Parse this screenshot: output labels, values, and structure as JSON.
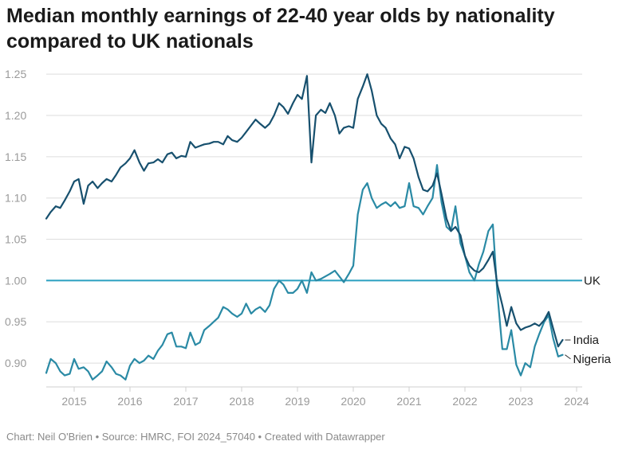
{
  "header": {
    "title_line1": "Median monthly earnings of 22-40 year olds by nationality",
    "title_line2": "compared to UK nationals"
  },
  "footer": {
    "source": "Chart: Neil O'Brien • Source: HMRC, FOI 2024_57040 • Created with Datawrapper"
  },
  "colors": {
    "india": "#17506e",
    "nigeria": "#2a8aa5",
    "uk": "#2a9fc0",
    "grid": "#dedede"
  },
  "chart_data": {
    "type": "line",
    "title": "Median monthly earnings of 22-40 year olds by nationality compared to UK nationals",
    "xlabel": "",
    "ylabel": "",
    "xlim": [
      2014.5,
      2024.1
    ],
    "ylim": [
      0.875,
      1.255
    ],
    "x_ticks": [
      "2015",
      "2016",
      "2017",
      "2018",
      "2019",
      "2020",
      "2021",
      "2022",
      "2023",
      "2024"
    ],
    "y_ticks": [
      "0.90",
      "0.95",
      "1.00",
      "1.05",
      "1.10",
      "1.15",
      "1.20",
      "1.25"
    ],
    "grid": true,
    "reference_line": {
      "name": "UK",
      "value": 1.0
    },
    "series": [
      {
        "name": "India",
        "points": [
          [
            2014.5,
            1.075
          ],
          [
            2014.58,
            1.083
          ],
          [
            2014.67,
            1.09
          ],
          [
            2014.75,
            1.088
          ],
          [
            2014.83,
            1.097
          ],
          [
            2014.92,
            1.108
          ],
          [
            2015.0,
            1.12
          ],
          [
            2015.08,
            1.123
          ],
          [
            2015.17,
            1.093
          ],
          [
            2015.25,
            1.115
          ],
          [
            2015.33,
            1.12
          ],
          [
            2015.42,
            1.112
          ],
          [
            2015.5,
            1.118
          ],
          [
            2015.58,
            1.123
          ],
          [
            2015.67,
            1.12
          ],
          [
            2015.75,
            1.128
          ],
          [
            2015.83,
            1.137
          ],
          [
            2015.92,
            1.142
          ],
          [
            2016.0,
            1.148
          ],
          [
            2016.08,
            1.158
          ],
          [
            2016.17,
            1.143
          ],
          [
            2016.25,
            1.133
          ],
          [
            2016.33,
            1.142
          ],
          [
            2016.42,
            1.143
          ],
          [
            2016.5,
            1.147
          ],
          [
            2016.58,
            1.143
          ],
          [
            2016.67,
            1.153
          ],
          [
            2016.75,
            1.155
          ],
          [
            2016.83,
            1.148
          ],
          [
            2016.92,
            1.151
          ],
          [
            2017.0,
            1.15
          ],
          [
            2017.08,
            1.168
          ],
          [
            2017.17,
            1.161
          ],
          [
            2017.25,
            1.163
          ],
          [
            2017.33,
            1.165
          ],
          [
            2017.42,
            1.166
          ],
          [
            2017.5,
            1.168
          ],
          [
            2017.58,
            1.168
          ],
          [
            2017.67,
            1.165
          ],
          [
            2017.75,
            1.175
          ],
          [
            2017.83,
            1.17
          ],
          [
            2017.92,
            1.168
          ],
          [
            2018.0,
            1.173
          ],
          [
            2018.08,
            1.18
          ],
          [
            2018.17,
            1.188
          ],
          [
            2018.25,
            1.195
          ],
          [
            2018.33,
            1.19
          ],
          [
            2018.42,
            1.185
          ],
          [
            2018.5,
            1.19
          ],
          [
            2018.58,
            1.2
          ],
          [
            2018.67,
            1.215
          ],
          [
            2018.75,
            1.21
          ],
          [
            2018.83,
            1.202
          ],
          [
            2018.92,
            1.215
          ],
          [
            2019.0,
            1.225
          ],
          [
            2019.08,
            1.22
          ],
          [
            2019.17,
            1.248
          ],
          [
            2019.25,
            1.143
          ],
          [
            2019.33,
            1.2
          ],
          [
            2019.42,
            1.207
          ],
          [
            2019.5,
            1.203
          ],
          [
            2019.58,
            1.215
          ],
          [
            2019.67,
            1.2
          ],
          [
            2019.75,
            1.178
          ],
          [
            2019.83,
            1.185
          ],
          [
            2019.92,
            1.187
          ],
          [
            2020.0,
            1.185
          ],
          [
            2020.08,
            1.22
          ],
          [
            2020.17,
            1.235
          ],
          [
            2020.25,
            1.25
          ],
          [
            2020.33,
            1.23
          ],
          [
            2020.42,
            1.2
          ],
          [
            2020.5,
            1.19
          ],
          [
            2020.58,
            1.185
          ],
          [
            2020.67,
            1.172
          ],
          [
            2020.75,
            1.165
          ],
          [
            2020.83,
            1.148
          ],
          [
            2020.92,
            1.162
          ],
          [
            2021.0,
            1.16
          ],
          [
            2021.08,
            1.148
          ],
          [
            2021.17,
            1.125
          ],
          [
            2021.25,
            1.11
          ],
          [
            2021.33,
            1.108
          ],
          [
            2021.42,
            1.115
          ],
          [
            2021.5,
            1.13
          ],
          [
            2021.58,
            1.105
          ],
          [
            2021.67,
            1.075
          ],
          [
            2021.75,
            1.06
          ],
          [
            2021.83,
            1.065
          ],
          [
            2021.92,
            1.055
          ],
          [
            2022.0,
            1.03
          ],
          [
            2022.08,
            1.018
          ],
          [
            2022.17,
            1.012
          ],
          [
            2022.25,
            1.01
          ],
          [
            2022.33,
            1.015
          ],
          [
            2022.42,
            1.025
          ],
          [
            2022.5,
            1.035
          ],
          [
            2022.58,
            0.995
          ],
          [
            2022.67,
            0.97
          ],
          [
            2022.75,
            0.945
          ],
          [
            2022.83,
            0.968
          ],
          [
            2022.92,
            0.948
          ],
          [
            2023.0,
            0.94
          ],
          [
            2023.08,
            0.943
          ],
          [
            2023.17,
            0.945
          ],
          [
            2023.25,
            0.948
          ],
          [
            2023.33,
            0.945
          ],
          [
            2023.42,
            0.952
          ],
          [
            2023.5,
            0.962
          ],
          [
            2023.58,
            0.942
          ],
          [
            2023.67,
            0.92
          ],
          [
            2023.75,
            0.928
          ]
        ]
      },
      {
        "name": "Nigeria",
        "points": [
          [
            2014.5,
            0.888
          ],
          [
            2014.58,
            0.905
          ],
          [
            2014.67,
            0.9
          ],
          [
            2014.75,
            0.89
          ],
          [
            2014.83,
            0.885
          ],
          [
            2014.92,
            0.887
          ],
          [
            2015.0,
            0.905
          ],
          [
            2015.08,
            0.893
          ],
          [
            2015.17,
            0.895
          ],
          [
            2015.25,
            0.89
          ],
          [
            2015.33,
            0.88
          ],
          [
            2015.42,
            0.885
          ],
          [
            2015.5,
            0.89
          ],
          [
            2015.58,
            0.902
          ],
          [
            2015.67,
            0.895
          ],
          [
            2015.75,
            0.887
          ],
          [
            2015.83,
            0.885
          ],
          [
            2015.92,
            0.88
          ],
          [
            2016.0,
            0.897
          ],
          [
            2016.08,
            0.905
          ],
          [
            2016.17,
            0.9
          ],
          [
            2016.25,
            0.903
          ],
          [
            2016.33,
            0.909
          ],
          [
            2016.42,
            0.905
          ],
          [
            2016.5,
            0.915
          ],
          [
            2016.58,
            0.922
          ],
          [
            2016.67,
            0.935
          ],
          [
            2016.75,
            0.937
          ],
          [
            2016.83,
            0.92
          ],
          [
            2016.92,
            0.92
          ],
          [
            2017.0,
            0.918
          ],
          [
            2017.08,
            0.937
          ],
          [
            2017.17,
            0.922
          ],
          [
            2017.25,
            0.925
          ],
          [
            2017.33,
            0.94
          ],
          [
            2017.42,
            0.945
          ],
          [
            2017.5,
            0.95
          ],
          [
            2017.58,
            0.955
          ],
          [
            2017.67,
            0.968
          ],
          [
            2017.75,
            0.965
          ],
          [
            2017.83,
            0.96
          ],
          [
            2017.92,
            0.956
          ],
          [
            2018.0,
            0.96
          ],
          [
            2018.08,
            0.972
          ],
          [
            2018.17,
            0.96
          ],
          [
            2018.25,
            0.965
          ],
          [
            2018.33,
            0.968
          ],
          [
            2018.42,
            0.962
          ],
          [
            2018.5,
            0.97
          ],
          [
            2018.58,
            0.99
          ],
          [
            2018.67,
            1.0
          ],
          [
            2018.75,
            0.995
          ],
          [
            2018.83,
            0.985
          ],
          [
            2018.92,
            0.985
          ],
          [
            2019.0,
            0.99
          ],
          [
            2019.08,
            1.0
          ],
          [
            2019.17,
            0.985
          ],
          [
            2019.25,
            1.01
          ],
          [
            2019.33,
            1.0
          ],
          [
            2019.42,
            1.002
          ],
          [
            2019.5,
            1.005
          ],
          [
            2019.58,
            1.008
          ],
          [
            2019.67,
            1.012
          ],
          [
            2019.75,
            1.005
          ],
          [
            2019.83,
            0.998
          ],
          [
            2019.92,
            1.008
          ],
          [
            2020.0,
            1.018
          ],
          [
            2020.08,
            1.08
          ],
          [
            2020.17,
            1.11
          ],
          [
            2020.25,
            1.118
          ],
          [
            2020.33,
            1.1
          ],
          [
            2020.42,
            1.088
          ],
          [
            2020.5,
            1.092
          ],
          [
            2020.58,
            1.095
          ],
          [
            2020.67,
            1.09
          ],
          [
            2020.75,
            1.095
          ],
          [
            2020.83,
            1.088
          ],
          [
            2020.92,
            1.09
          ],
          [
            2021.0,
            1.118
          ],
          [
            2021.08,
            1.09
          ],
          [
            2021.17,
            1.088
          ],
          [
            2021.25,
            1.08
          ],
          [
            2021.33,
            1.09
          ],
          [
            2021.42,
            1.1
          ],
          [
            2021.5,
            1.14
          ],
          [
            2021.58,
            1.095
          ],
          [
            2021.67,
            1.065
          ],
          [
            2021.75,
            1.06
          ],
          [
            2021.83,
            1.09
          ],
          [
            2021.92,
            1.045
          ],
          [
            2022.0,
            1.03
          ],
          [
            2022.08,
            1.01
          ],
          [
            2022.17,
            1.0
          ],
          [
            2022.25,
            1.02
          ],
          [
            2022.33,
            1.035
          ],
          [
            2022.42,
            1.06
          ],
          [
            2022.5,
            1.068
          ],
          [
            2022.58,
            0.985
          ],
          [
            2022.67,
            0.917
          ],
          [
            2022.75,
            0.917
          ],
          [
            2022.83,
            0.94
          ],
          [
            2022.92,
            0.898
          ],
          [
            2023.0,
            0.885
          ],
          [
            2023.08,
            0.9
          ],
          [
            2023.17,
            0.895
          ],
          [
            2023.25,
            0.92
          ],
          [
            2023.33,
            0.935
          ],
          [
            2023.42,
            0.95
          ],
          [
            2023.5,
            0.958
          ],
          [
            2023.58,
            0.93
          ],
          [
            2023.67,
            0.908
          ],
          [
            2023.75,
            0.91
          ]
        ]
      }
    ]
  }
}
